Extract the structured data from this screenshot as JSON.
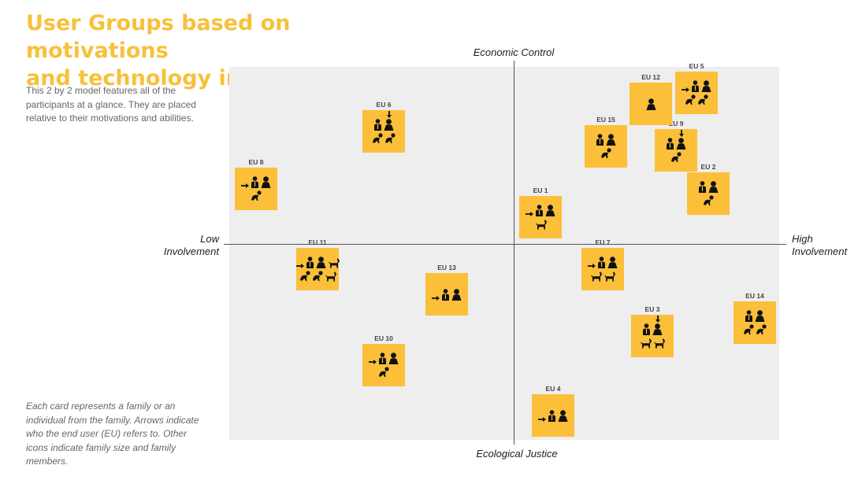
{
  "title": {
    "line1": "User Groups based on motivations",
    "line2": "and technology involvement"
  },
  "intro": "This 2 by 2 model features all of the participants at a glance. They are placed relative to their motivations and abilities.",
  "footnote": "Each card represents a family or an individual from the family. Arrows indicate who the end user (EU) refers to. Other icons indicate family size and family members.",
  "axes": {
    "top": "Economic Control",
    "bottom": "Ecological Justice",
    "left": [
      "Low",
      "Involvement"
    ],
    "right": [
      "High",
      "Involvement"
    ]
  },
  "colors": {
    "card": "#fbbf39",
    "title": "#f8c13b",
    "quadrant": "#eeeeee"
  },
  "cards": [
    {
      "id": "EU 1",
      "row1": [
        "arrow-left",
        "man",
        "woman"
      ],
      "row2": [
        "dog"
      ]
    },
    {
      "id": "EU 2",
      "row1": [
        "man",
        "woman"
      ],
      "row2": [
        "baby"
      ]
    },
    {
      "id": "EU 3",
      "row1": [
        "man",
        "woman"
      ],
      "row1_arrow_down": "woman",
      "row2": [
        "dog",
        "dog"
      ]
    },
    {
      "id": "EU 4",
      "row1": [
        "arrow-left",
        "man",
        "woman"
      ],
      "row2": []
    },
    {
      "id": "EU 5",
      "row1": [
        "arrow-left",
        "man",
        "woman"
      ],
      "row2": [
        "baby",
        "baby"
      ]
    },
    {
      "id": "EU 6",
      "row1": [
        "man",
        "woman"
      ],
      "row1_arrow_down": "woman",
      "row2": [
        "baby",
        "baby"
      ]
    },
    {
      "id": "EU 7",
      "row1": [
        "arrow-left",
        "man",
        "woman"
      ],
      "row2": [
        "dog",
        "dog"
      ]
    },
    {
      "id": "EU 8",
      "row1": [
        "arrow-left",
        "man",
        "woman"
      ],
      "row2": [
        "baby"
      ]
    },
    {
      "id": "EU 9",
      "row1": [
        "man",
        "woman"
      ],
      "row1_arrow_down": "woman",
      "row2": [
        "baby"
      ]
    },
    {
      "id": "EU 10",
      "row1": [
        "arrow-left",
        "man",
        "woman"
      ],
      "row2": [
        "baby"
      ]
    },
    {
      "id": "EU 11",
      "row1": [
        "arrow-left",
        "man",
        "woman",
        "dog"
      ],
      "row2": [
        "baby",
        "baby",
        "dog"
      ]
    },
    {
      "id": "EU 12",
      "row1": [
        "woman"
      ],
      "row2": []
    },
    {
      "id": "EU 13",
      "row1": [
        "arrow-left",
        "man",
        "woman"
      ],
      "row2": []
    },
    {
      "id": "EU 14",
      "row1": [
        "man",
        "woman"
      ],
      "row2": [
        "baby",
        "baby"
      ]
    },
    {
      "id": "EU 15",
      "row1": [
        "man",
        "woman"
      ],
      "row2": [
        "baby"
      ]
    }
  ]
}
